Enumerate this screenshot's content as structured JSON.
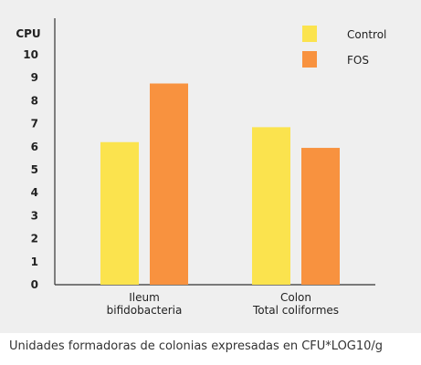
{
  "chart_data": {
    "type": "bar",
    "ylabel": "CPU",
    "ylim": [
      0,
      10
    ],
    "yticks": [
      0,
      1,
      2,
      3,
      4,
      5,
      6,
      7,
      8,
      9,
      10
    ],
    "categories": [
      [
        "Ileum",
        "bifidobacteria"
      ],
      [
        "Colon",
        "Total coliformes"
      ]
    ],
    "series": [
      {
        "name": "Control",
        "color": "#fbe34e",
        "values": [
          6.2,
          6.85
        ]
      },
      {
        "name": "FOS",
        "color": "#f8923f",
        "values": [
          8.75,
          5.95
        ]
      }
    ],
    "legend_position": "top-right",
    "grid": false
  },
  "footnote": "Unidades formadoras de colonias expresadas en CFU*LOG10/g"
}
